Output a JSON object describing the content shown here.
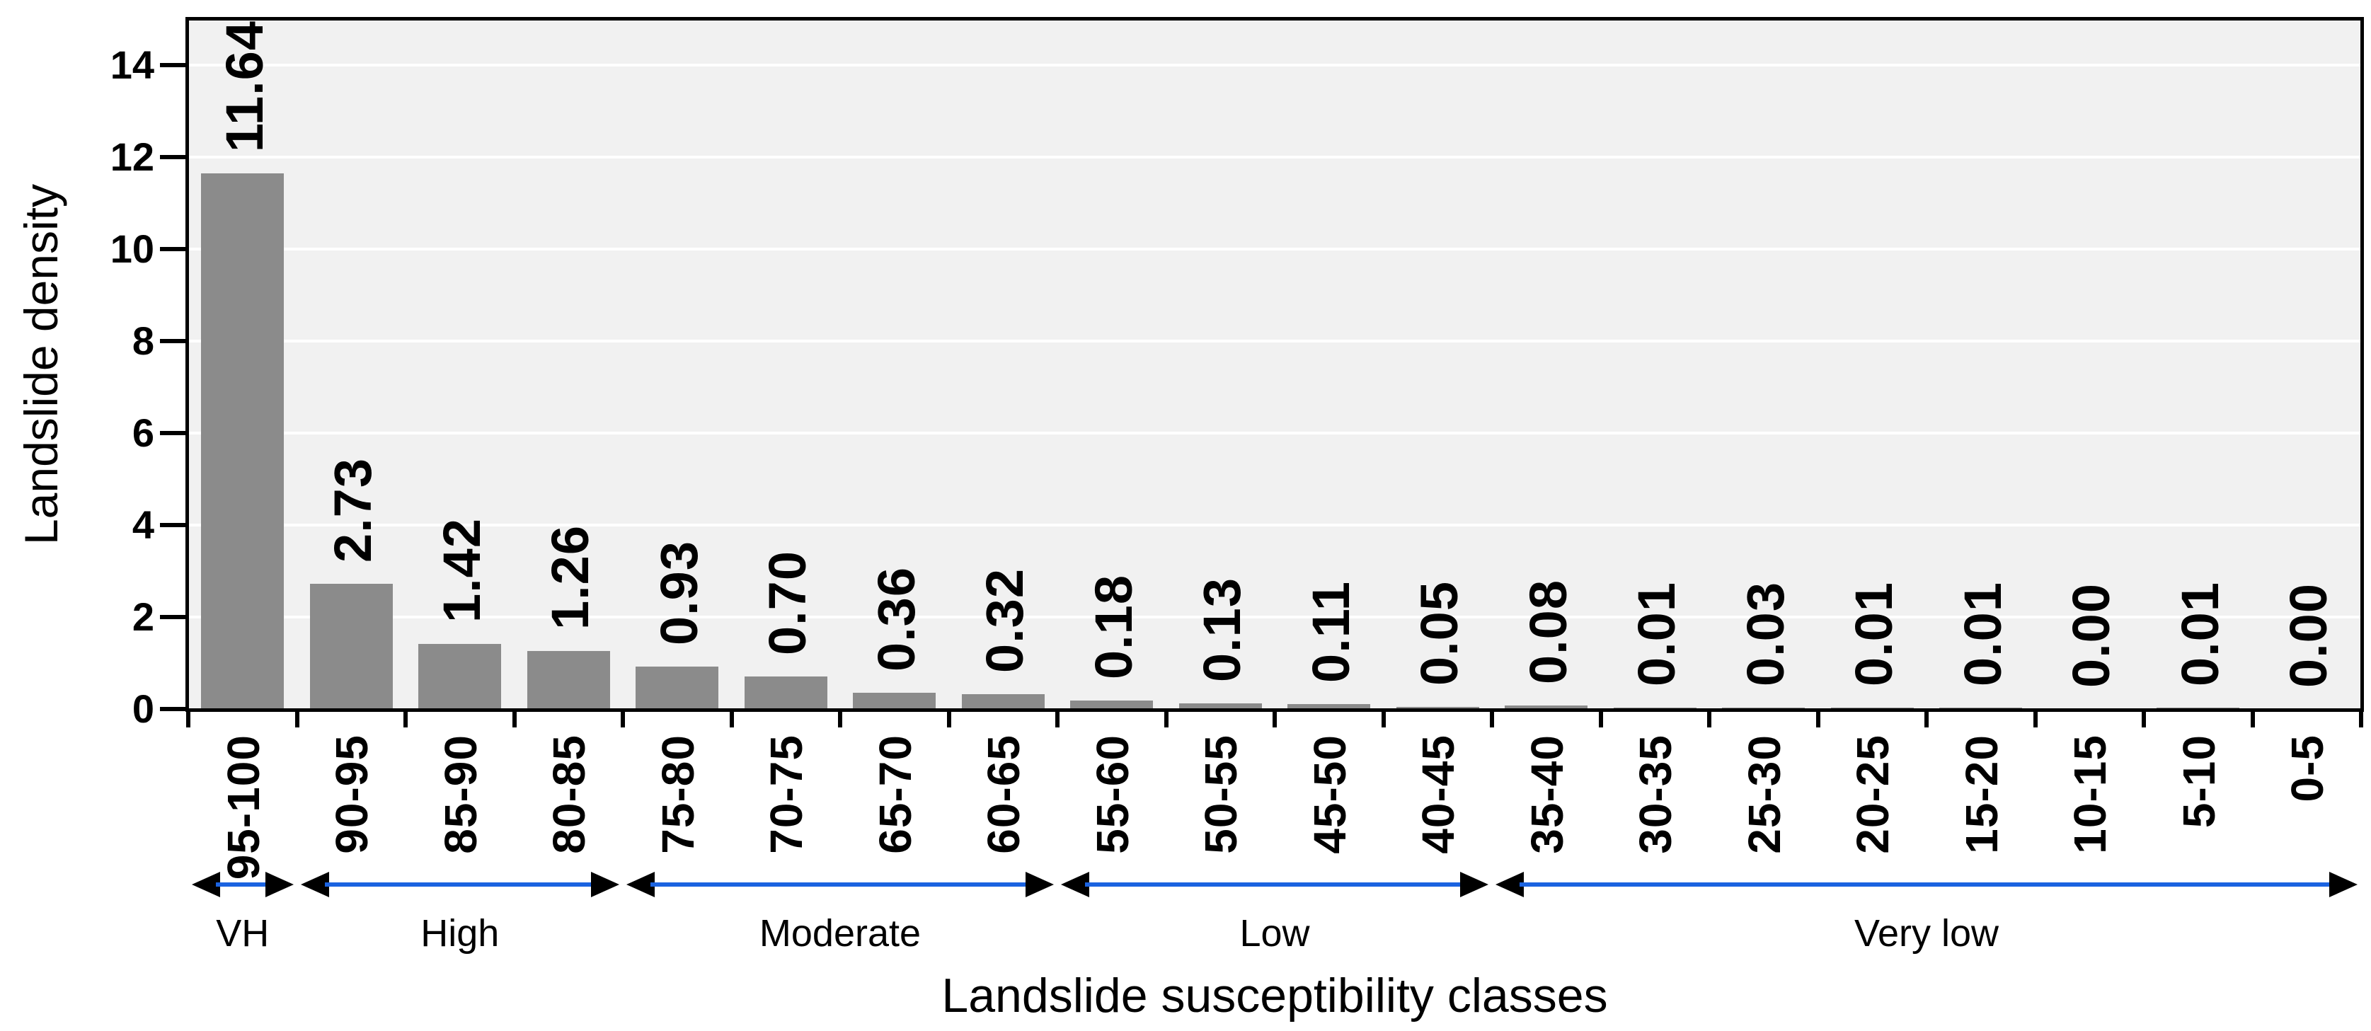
{
  "chart_data": {
    "type": "bar",
    "title": "",
    "xlabel": "Landslide susceptibility classes",
    "ylabel": "Landslide density",
    "categories": [
      "95-100",
      "90-95",
      "85-90",
      "80-85",
      "75-80",
      "70-75",
      "65-70",
      "60-65",
      "55-60",
      "50-55",
      "45-50",
      "40-45",
      "35-40",
      "30-35",
      "25-30",
      "20-25",
      "15-20",
      "10-15",
      "5-10",
      "0-5"
    ],
    "values": [
      11.64,
      2.73,
      1.42,
      1.26,
      0.93,
      0.7,
      0.36,
      0.32,
      0.18,
      0.13,
      0.11,
      0.05,
      0.08,
      0.01,
      0.03,
      0.01,
      0.01,
      0.0,
      0.01,
      0.0
    ],
    "value_labels": [
      "11.64",
      "2.73",
      "1.42",
      "1.26",
      "0.93",
      "0.70",
      "0.36",
      "0.32",
      "0.18",
      "0.13",
      "0.11",
      "0.05",
      "0.08",
      "0.01",
      "0.03",
      "0.01",
      "0.01",
      "0.00",
      "0.01",
      "0.00"
    ],
    "yticks": [
      0,
      2,
      4,
      6,
      8,
      10,
      12,
      14
    ],
    "ylim": [
      0,
      14.95
    ],
    "grid": "horizontal white lines on light gray plot background",
    "legend_position": "none",
    "class_groups": [
      {
        "label": "VH",
        "span": 1
      },
      {
        "label": "High",
        "span": 3
      },
      {
        "label": "Moderate",
        "span": 4
      },
      {
        "label": "Low",
        "span": 4
      },
      {
        "label": "Very low",
        "span": 8
      }
    ],
    "colors": {
      "bar": "#8b8b8b",
      "plot_background": "#f1f1f1",
      "gridline": "#ffffff",
      "axis": "#000000",
      "arrow_line": "#1b63e0",
      "arrowhead": "#000000",
      "text": "#000000"
    }
  }
}
